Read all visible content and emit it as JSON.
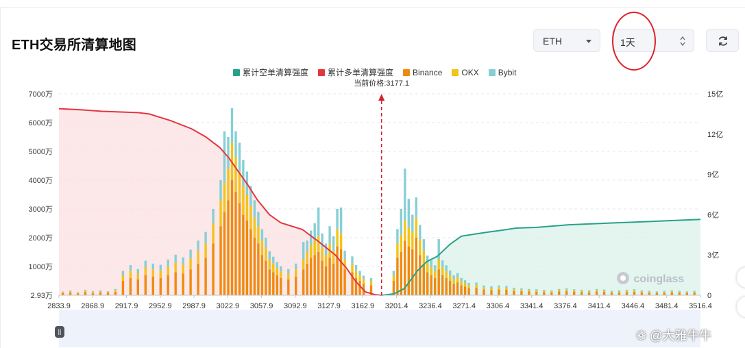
{
  "header": {
    "title": "ETH交易所清算地图",
    "coin_value": "ETH",
    "range_value": "1天"
  },
  "colors": {
    "short_cum": "#26a288",
    "long_cum": "#e2373e",
    "binance": "#f08a0f",
    "okx": "#f3c318",
    "bybit": "#86cfd5"
  },
  "chart_data": {
    "type": "bar",
    "title": "",
    "legend": [
      "累计空单清算强度",
      "累计多单清算强度",
      "Binance",
      "OKX",
      "Bybit"
    ],
    "legend_position": "top-center",
    "current_price_label": "当前价格:3177.1",
    "current_price": 3177.1,
    "x_range": [
      2833.9,
      3516.4
    ],
    "x_ticks": [
      "2833.9",
      "2868.9",
      "2917.9",
      "2952.9",
      "2987.9",
      "3022.9",
      "3057.9",
      "3092.9",
      "3127.9",
      "3162.9",
      "3201.4",
      "3236.4",
      "3271.4",
      "3306.4",
      "3341.4",
      "3376.4",
      "3411.4",
      "3446.4",
      "3481.4",
      "3516.4"
    ],
    "y_left_ticks": [
      "2.93万",
      "1000万",
      "2000万",
      "3000万",
      "4000万",
      "5000万",
      "6000万",
      "7000万"
    ],
    "y_left_range": [
      0,
      7000
    ],
    "y_right_ticks": [
      "0",
      "3亿",
      "6亿",
      "9亿",
      "12亿",
      "15亿"
    ],
    "y_right_range": [
      0,
      15
    ],
    "grid": true,
    "watermark": "coinglass",
    "long_cumulative": {
      "name": "累计多单清算强度",
      "points": [
        [
          2833.9,
          13.9
        ],
        [
          2860,
          13.8
        ],
        [
          2880,
          13.7
        ],
        [
          2900,
          13.65
        ],
        [
          2917.9,
          13.6
        ],
        [
          2930,
          13.5
        ],
        [
          2952.9,
          13.0
        ],
        [
          2975,
          12.4
        ],
        [
          2990,
          11.8
        ],
        [
          3005,
          11.0
        ],
        [
          3015,
          10.2
        ],
        [
          3022.9,
          9.4
        ],
        [
          3035,
          8.2
        ],
        [
          3045,
          7.1
        ],
        [
          3057.9,
          6.0
        ],
        [
          3070,
          5.4
        ],
        [
          3092.9,
          4.9
        ],
        [
          3110,
          4.0
        ],
        [
          3127.9,
          3.0
        ],
        [
          3140,
          2.0
        ],
        [
          3150,
          1.0
        ],
        [
          3160,
          0.25
        ],
        [
          3170,
          0.05
        ],
        [
          3177.1,
          0
        ]
      ]
    },
    "short_cumulative": {
      "name": "累计空单清算强度",
      "points": [
        [
          3177.1,
          0
        ],
        [
          3190,
          0.1
        ],
        [
          3201.4,
          0.5
        ],
        [
          3215,
          1.8
        ],
        [
          3225,
          2.5
        ],
        [
          3236.4,
          2.9
        ],
        [
          3250,
          3.8
        ],
        [
          3262,
          4.4
        ],
        [
          3271.4,
          4.5
        ],
        [
          3290,
          4.7
        ],
        [
          3306.4,
          4.85
        ],
        [
          3320,
          5.0
        ],
        [
          3341.4,
          5.05
        ],
        [
          3376.4,
          5.25
        ],
        [
          3411.4,
          5.35
        ],
        [
          3446.4,
          5.45
        ],
        [
          3481.4,
          5.55
        ],
        [
          3516.4,
          5.65
        ]
      ]
    },
    "series": [
      {
        "name": "Binance",
        "values": []
      },
      {
        "name": "OKX",
        "values": []
      },
      {
        "name": "Bybit",
        "values": []
      }
    ],
    "bars": {
      "x": [
        2838,
        2846,
        2854,
        2862,
        2870,
        2878,
        2886,
        2894,
        2902,
        2910,
        2918,
        2926,
        2934,
        2942,
        2950,
        2958,
        2966,
        2974,
        2982,
        2990,
        2998,
        3006,
        3010,
        3014,
        3018,
        3022,
        3026,
        3030,
        3034,
        3038,
        3042,
        3046,
        3050,
        3054,
        3058,
        3062,
        3066,
        3070,
        3078,
        3086,
        3094,
        3098,
        3102,
        3106,
        3110,
        3114,
        3118,
        3122,
        3126,
        3130,
        3134,
        3138,
        3146,
        3150,
        3154,
        3158,
        3166,
        3190,
        3194,
        3198,
        3202,
        3206,
        3210,
        3214,
        3218,
        3222,
        3226,
        3230,
        3234,
        3238,
        3242,
        3246,
        3250,
        3254,
        3258,
        3262,
        3266,
        3270,
        3278,
        3286,
        3294,
        3302,
        3310,
        3318,
        3326,
        3334,
        3342,
        3350,
        3358,
        3366,
        3374,
        3382,
        3390,
        3398,
        3406,
        3414,
        3422,
        3430,
        3438,
        3446,
        3454,
        3462,
        3470,
        3478,
        3486,
        3494,
        3502,
        3510
      ],
      "binance": [
        80,
        90,
        60,
        110,
        70,
        100,
        90,
        120,
        500,
        600,
        550,
        700,
        650,
        600,
        700,
        800,
        750,
        900,
        1100,
        1300,
        1800,
        2400,
        2900,
        3300,
        4000,
        3600,
        3200,
        2800,
        2600,
        2300,
        2000,
        1800,
        1400,
        1200,
        900,
        800,
        700,
        600,
        550,
        650,
        900,
        1100,
        1300,
        1400,
        1500,
        1200,
        1000,
        1300,
        1100,
        1700,
        1600,
        900,
        800,
        600,
        500,
        400,
        350,
        500,
        1300,
        1500,
        1900,
        1700,
        1600,
        2000,
        1400,
        1100,
        800,
        700,
        600,
        900,
        700,
        600,
        500,
        400,
        450,
        350,
        300,
        250,
        260,
        200,
        180,
        200,
        190,
        150,
        140,
        130,
        120,
        110,
        100,
        130,
        140,
        120,
        110,
        100,
        130,
        120,
        90,
        100,
        110,
        120,
        100,
        90,
        80,
        90,
        100,
        90,
        80,
        90
      ],
      "okx": [
        30,
        40,
        30,
        50,
        40,
        40,
        30,
        60,
        200,
        250,
        200,
        280,
        250,
        260,
        300,
        340,
        320,
        380,
        450,
        500,
        700,
        900,
        1000,
        1100,
        1300,
        1200,
        1100,
        1000,
        900,
        800,
        700,
        600,
        500,
        450,
        350,
        300,
        250,
        230,
        200,
        250,
        350,
        400,
        450,
        500,
        550,
        450,
        400,
        500,
        450,
        600,
        550,
        350,
        300,
        250,
        200,
        160,
        140,
        200,
        500,
        600,
        700,
        650,
        600,
        700,
        550,
        450,
        320,
        280,
        240,
        350,
        280,
        240,
        200,
        160,
        180,
        140,
        120,
        100,
        100,
        80,
        70,
        80,
        75,
        60,
        55,
        50,
        50,
        45,
        40,
        50,
        55,
        50,
        45,
        40,
        50,
        45,
        35,
        40,
        45,
        50,
        40,
        35,
        30,
        35,
        40,
        35,
        30,
        35
      ],
      "bybit": [
        20,
        30,
        20,
        30,
        30,
        30,
        20,
        40,
        150,
        200,
        160,
        220,
        200,
        200,
        240,
        270,
        250,
        300,
        350,
        400,
        500,
        700,
        1800,
        1100,
        1200,
        900,
        1000,
        900,
        800,
        700,
        600,
        500,
        400,
        350,
        280,
        240,
        200,
        180,
        160,
        200,
        600,
        400,
        500,
        600,
        1000,
        500,
        400,
        600,
        500,
        700,
        900,
        300,
        250,
        200,
        150,
        120,
        110,
        150,
        500,
        900,
        1800,
        1000,
        600,
        700,
        500,
        400,
        260,
        230,
        200,
        700,
        230,
        200,
        160,
        130,
        140,
        110,
        100,
        80,
        80,
        60,
        60,
        60,
        60,
        50,
        45,
        40,
        40,
        35,
        30,
        40,
        45,
        40,
        35,
        30,
        40,
        35,
        30,
        30,
        35,
        40,
        30,
        30,
        25,
        30,
        30,
        30,
        25,
        30
      ]
    }
  }
}
